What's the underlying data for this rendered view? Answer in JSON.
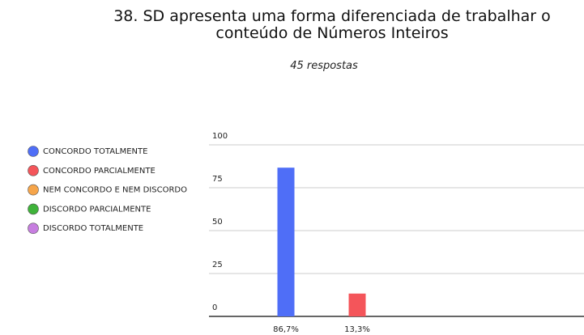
{
  "chart_data": {
    "type": "bar",
    "title": "38. SD apresenta uma forma diferenciada de trabalhar o conteúdo de Números Inteiros",
    "subtitle": "45 respostas",
    "categories": [
      "CONCORDO TOTALMENTE",
      "CONCORDO PARCIALMENTE",
      "NEM CONCORDO E NEM DISCORDO",
      "DISCORDO PARCIALMENTE",
      "DISCORDO TOTALMENTE"
    ],
    "values": [
      86.7,
      13.3,
      0,
      0,
      0
    ],
    "value_labels": [
      "86,7%",
      "13,3%",
      null,
      null,
      null
    ],
    "colors": [
      "#4f6ef7",
      "#f4555a",
      "#f6a54a",
      "#3fb33a",
      "#c77ee0"
    ],
    "ylim": [
      0,
      100
    ],
    "yticks": [
      0,
      25,
      50,
      75,
      100
    ],
    "grid": true,
    "legend": "left"
  }
}
